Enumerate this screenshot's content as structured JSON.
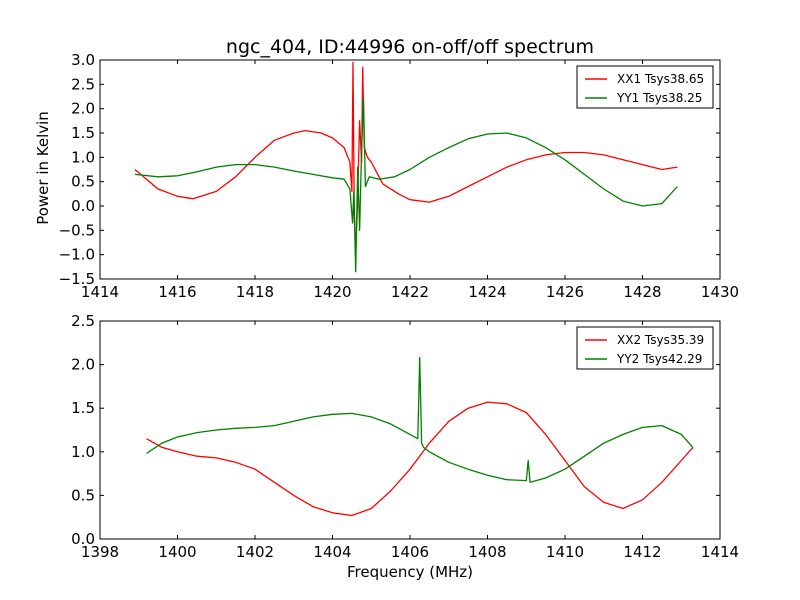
{
  "chart_data": [
    {
      "type": "line",
      "title": "ngc_404, ID:44996 on-off/off spectrum",
      "xlabel": "",
      "ylabel": "Power in Kelvin",
      "xlim": [
        1414,
        1430
      ],
      "ylim": [
        -1.5,
        3.0
      ],
      "xticks": [
        "1414",
        "1416",
        "1418",
        "1420",
        "1422",
        "1424",
        "1426",
        "1428",
        "1430"
      ],
      "yticks": [
        "−1.5",
        "−1.0",
        "−0.5",
        "0.0",
        "0.5",
        "1.0",
        "1.5",
        "2.0",
        "2.5",
        "3.0"
      ],
      "grid": false,
      "legend_position": "top-right",
      "series": [
        {
          "name": "XX1 Tsys38.65",
          "color": "#ff0000",
          "x": [
            1414.9,
            1415.2,
            1415.5,
            1416.0,
            1416.4,
            1417.0,
            1417.5,
            1418.0,
            1418.5,
            1419.0,
            1419.3,
            1419.7,
            1420.0,
            1420.3,
            1420.45,
            1420.5,
            1420.53,
            1420.56,
            1420.6,
            1420.65,
            1420.7,
            1420.75,
            1420.78,
            1420.82,
            1420.9,
            1421.0,
            1421.3,
            1421.7,
            1422.0,
            1422.5,
            1423.0,
            1423.5,
            1424.0,
            1424.5,
            1425.0,
            1425.5,
            1426.0,
            1426.5,
            1427.0,
            1427.5,
            1428.0,
            1428.5,
            1428.9
          ],
          "y": [
            0.75,
            0.55,
            0.35,
            0.2,
            0.15,
            0.3,
            0.6,
            1.0,
            1.35,
            1.5,
            1.55,
            1.5,
            1.4,
            1.2,
            0.9,
            0.3,
            2.95,
            0.0,
            -1.0,
            0.2,
            1.75,
            0.9,
            2.85,
            1.2,
            1.0,
            0.9,
            0.45,
            0.25,
            0.13,
            0.08,
            0.2,
            0.4,
            0.6,
            0.8,
            0.95,
            1.05,
            1.1,
            1.1,
            1.05,
            0.95,
            0.85,
            0.75,
            0.8
          ]
        },
        {
          "name": "YY1 Tsys38.25",
          "color": "#008000",
          "x": [
            1414.9,
            1415.5,
            1416.0,
            1416.5,
            1417.0,
            1417.5,
            1418.0,
            1418.5,
            1419.0,
            1419.5,
            1420.0,
            1420.3,
            1420.45,
            1420.52,
            1420.55,
            1420.6,
            1420.65,
            1420.7,
            1420.75,
            1420.8,
            1420.85,
            1420.95,
            1421.2,
            1421.6,
            1422.0,
            1422.5,
            1423.0,
            1423.5,
            1424.0,
            1424.5,
            1425.0,
            1425.5,
            1426.0,
            1426.5,
            1427.0,
            1427.5,
            1428.0,
            1428.5,
            1428.9
          ],
          "y": [
            0.65,
            0.6,
            0.62,
            0.7,
            0.8,
            0.85,
            0.85,
            0.8,
            0.72,
            0.65,
            0.58,
            0.55,
            0.35,
            -0.35,
            0.3,
            -1.35,
            0.8,
            -0.5,
            1.15,
            2.2,
            0.4,
            0.6,
            0.55,
            0.6,
            0.75,
            1.0,
            1.2,
            1.38,
            1.48,
            1.5,
            1.4,
            1.2,
            0.95,
            0.65,
            0.35,
            0.1,
            0.0,
            0.05,
            0.4
          ]
        }
      ]
    },
    {
      "type": "line",
      "title": "",
      "xlabel": "Frequency (MHz)",
      "ylabel": "",
      "xlim": [
        1398,
        1414
      ],
      "ylim": [
        0.0,
        2.5
      ],
      "xticks": [
        "1398",
        "1400",
        "1402",
        "1404",
        "1406",
        "1408",
        "1410",
        "1412",
        "1414"
      ],
      "yticks": [
        "0.0",
        "0.5",
        "1.0",
        "1.5",
        "2.0",
        "2.5"
      ],
      "grid": false,
      "legend_position": "top-right",
      "series": [
        {
          "name": "XX2 Tsys35.39",
          "color": "#ff0000",
          "x": [
            1399.2,
            1399.6,
            1400.0,
            1400.5,
            1401.0,
            1401.5,
            1402.0,
            1402.5,
            1403.0,
            1403.5,
            1404.0,
            1404.5,
            1405.0,
            1405.5,
            1406.0,
            1406.5,
            1407.0,
            1407.5,
            1408.0,
            1408.5,
            1409.0,
            1409.5,
            1410.0,
            1410.5,
            1411.0,
            1411.5,
            1412.0,
            1412.5,
            1413.0,
            1413.3
          ],
          "y": [
            1.15,
            1.05,
            1.0,
            0.95,
            0.93,
            0.88,
            0.8,
            0.65,
            0.5,
            0.37,
            0.3,
            0.27,
            0.35,
            0.55,
            0.8,
            1.1,
            1.35,
            1.5,
            1.57,
            1.55,
            1.45,
            1.2,
            0.9,
            0.6,
            0.42,
            0.35,
            0.45,
            0.65,
            0.9,
            1.05
          ]
        },
        {
          "name": "YY2 Tsys42.29",
          "color": "#008000",
          "x": [
            1399.2,
            1399.6,
            1400.0,
            1400.5,
            1401.0,
            1401.5,
            1402.0,
            1402.5,
            1403.0,
            1403.5,
            1404.0,
            1404.5,
            1405.0,
            1405.5,
            1406.0,
            1406.2,
            1406.25,
            1406.3,
            1406.35,
            1406.5,
            1407.0,
            1407.5,
            1408.0,
            1408.5,
            1409.0,
            1409.05,
            1409.1,
            1409.5,
            1410.0,
            1410.5,
            1411.0,
            1411.5,
            1412.0,
            1412.5,
            1413.0,
            1413.3
          ],
          "y": [
            0.98,
            1.1,
            1.17,
            1.22,
            1.25,
            1.27,
            1.28,
            1.3,
            1.35,
            1.4,
            1.43,
            1.44,
            1.4,
            1.32,
            1.2,
            1.15,
            2.08,
            1.1,
            1.05,
            1.0,
            0.88,
            0.8,
            0.73,
            0.68,
            0.67,
            0.9,
            0.65,
            0.7,
            0.8,
            0.95,
            1.1,
            1.2,
            1.28,
            1.3,
            1.2,
            1.05
          ]
        }
      ]
    }
  ]
}
